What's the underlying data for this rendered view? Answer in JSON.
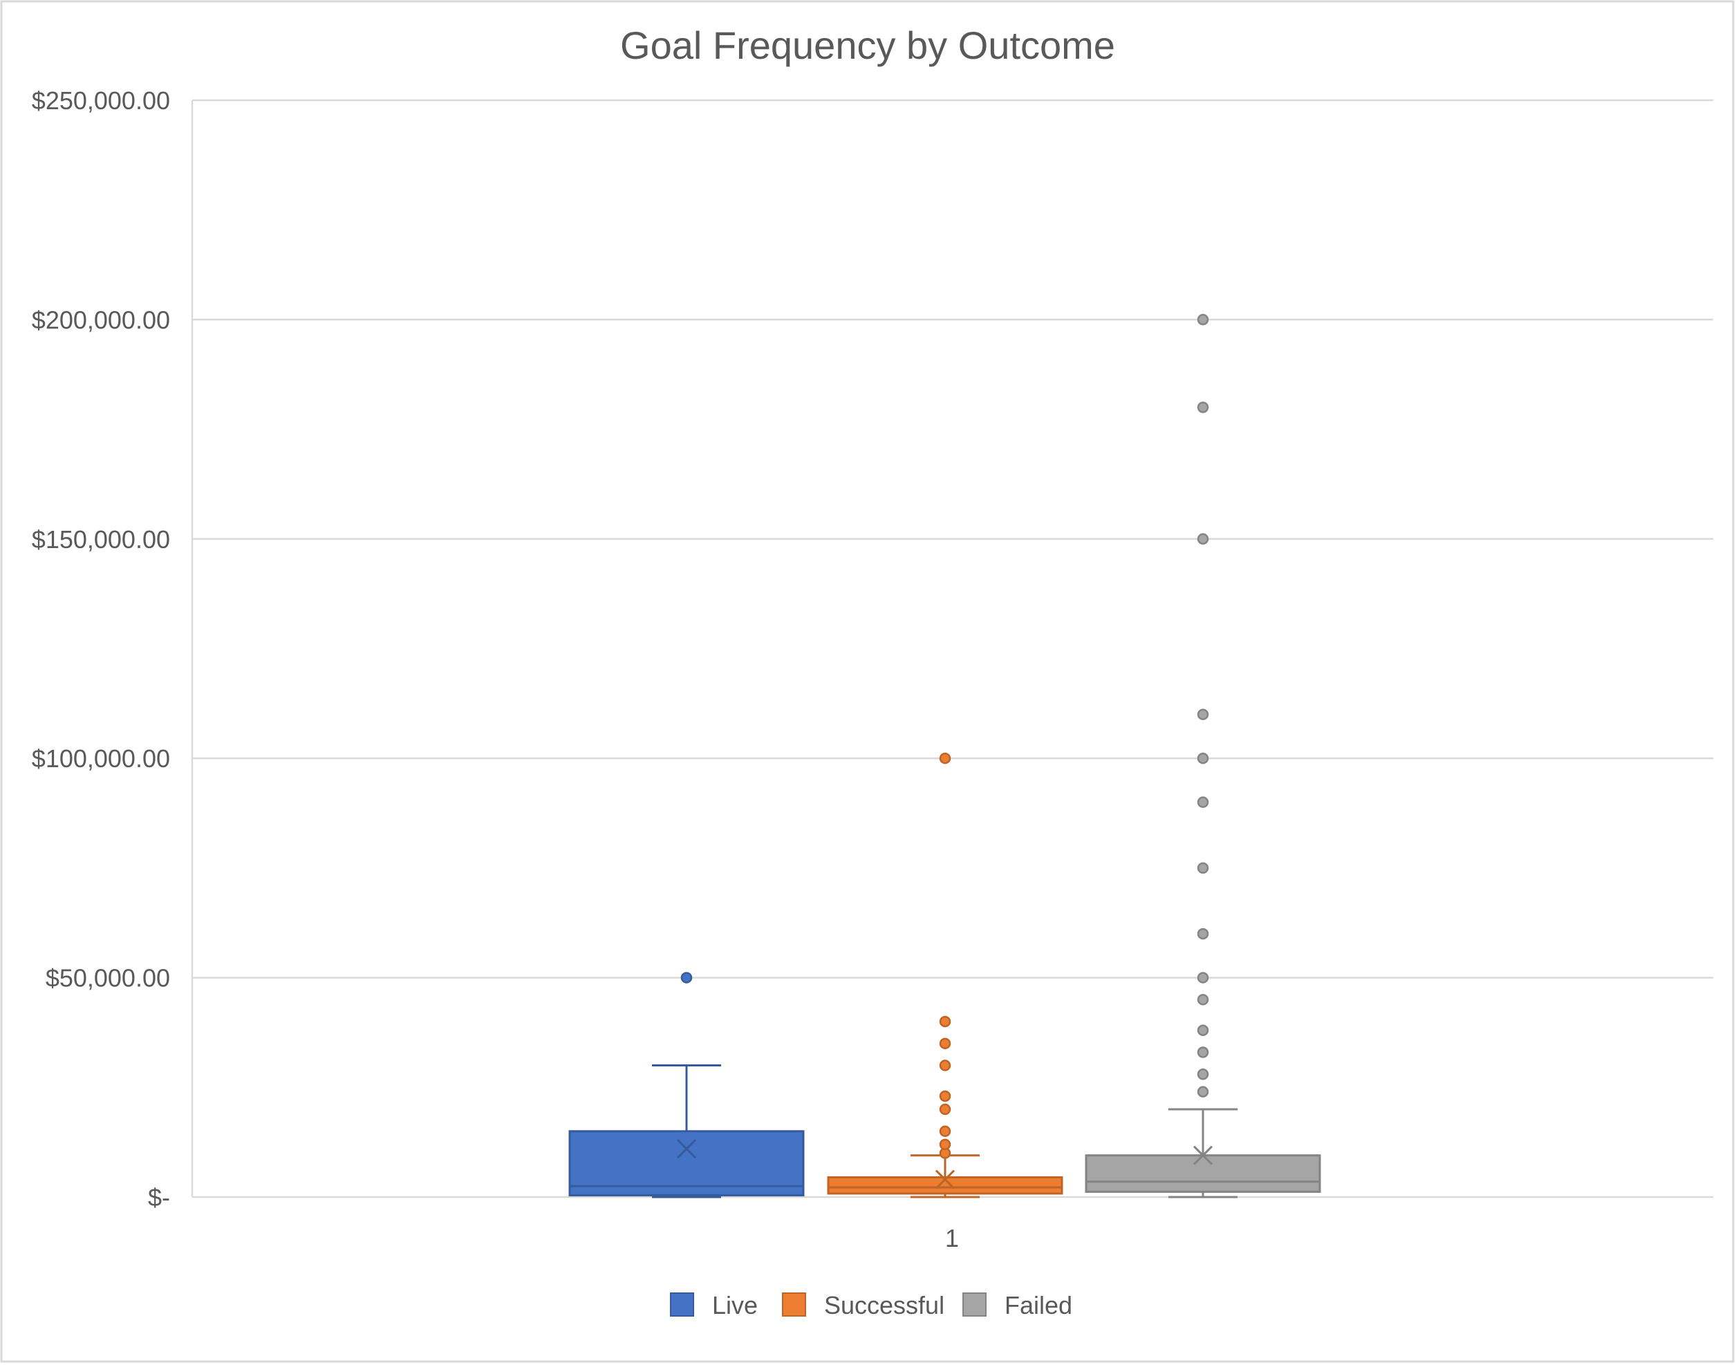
{
  "chart_data": {
    "type": "box",
    "title": "Goal Frequency by Outcome",
    "xlabel": "",
    "ylabel": "",
    "categories": [
      "1"
    ],
    "ylim": [
      0,
      250000
    ],
    "y_ticks": [
      0,
      50000,
      100000,
      150000,
      200000,
      250000
    ],
    "y_tick_labels": [
      "$-",
      "$50,000.00",
      "$100,000.00",
      "$150,000.00",
      "$200,000.00",
      "$250,000.00"
    ],
    "grid": true,
    "legend_position": "bottom",
    "series": [
      {
        "name": "Live",
        "color": "#4472C4",
        "min": 0,
        "q1": 400,
        "median": 2500,
        "q3": 15000,
        "max": 30000,
        "mean": 11000,
        "outliers": [
          50000
        ]
      },
      {
        "name": "Successful",
        "color": "#ED7D31",
        "min": 0,
        "q1": 800,
        "median": 2200,
        "q3": 4500,
        "max": 9500,
        "mean": 4000,
        "outliers": [
          10000,
          12000,
          15000,
          20000,
          23000,
          30000,
          35000,
          40000,
          100000
        ]
      },
      {
        "name": "Failed",
        "color": "#A5A5A5",
        "min": 0,
        "q1": 1200,
        "median": 3500,
        "q3": 9500,
        "max": 20000,
        "mean": 9500,
        "outliers": [
          24000,
          28000,
          33000,
          38000,
          45000,
          50000,
          60000,
          75000,
          90000,
          100000,
          110000,
          150000,
          180000,
          200000
        ]
      }
    ]
  }
}
